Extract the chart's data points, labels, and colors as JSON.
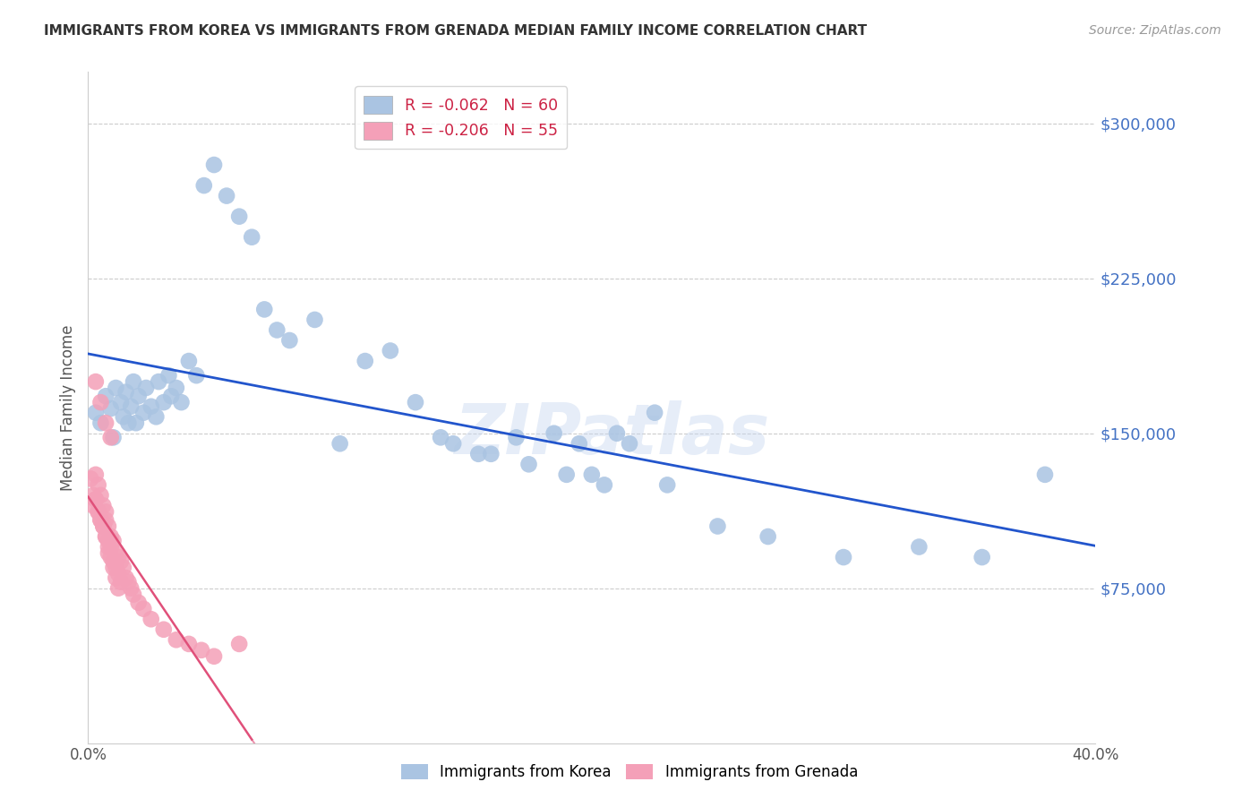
{
  "title": "IMMIGRANTS FROM KOREA VS IMMIGRANTS FROM GRENADA MEDIAN FAMILY INCOME CORRELATION CHART",
  "source": "Source: ZipAtlas.com",
  "ylabel": "Median Family Income",
  "xlim": [
    0,
    0.4
  ],
  "ylim": [
    0,
    325000
  ],
  "yticks": [
    0,
    75000,
    150000,
    225000,
    300000
  ],
  "xticks": [
    0.0,
    0.05,
    0.1,
    0.15,
    0.2,
    0.25,
    0.3,
    0.35,
    0.4
  ],
  "korea_color": "#aac4e2",
  "grenada_color": "#f4a0b8",
  "korea_line_color": "#2255cc",
  "grenada_line_color": "#e0507a",
  "watermark": "ZIPatlas",
  "korea_R": "-0.062",
  "korea_N": "60",
  "grenada_R": "-0.206",
  "grenada_N": "55",
  "korea_x": [
    0.003,
    0.005,
    0.007,
    0.009,
    0.01,
    0.011,
    0.013,
    0.014,
    0.015,
    0.016,
    0.017,
    0.018,
    0.019,
    0.02,
    0.022,
    0.023,
    0.025,
    0.027,
    0.028,
    0.03,
    0.032,
    0.033,
    0.035,
    0.037,
    0.04,
    0.043,
    0.046,
    0.05,
    0.055,
    0.06,
    0.065,
    0.07,
    0.075,
    0.08,
    0.09,
    0.1,
    0.11,
    0.12,
    0.13,
    0.14,
    0.155,
    0.17,
    0.185,
    0.2,
    0.215,
    0.23,
    0.25,
    0.27,
    0.3,
    0.33,
    0.355,
    0.38,
    0.195,
    0.21,
    0.225,
    0.145,
    0.16,
    0.175,
    0.19,
    0.205
  ],
  "korea_y": [
    160000,
    155000,
    168000,
    162000,
    148000,
    172000,
    165000,
    158000,
    170000,
    155000,
    163000,
    175000,
    155000,
    168000,
    160000,
    172000,
    163000,
    158000,
    175000,
    165000,
    178000,
    168000,
    172000,
    165000,
    185000,
    178000,
    270000,
    280000,
    265000,
    255000,
    245000,
    210000,
    200000,
    195000,
    205000,
    145000,
    185000,
    190000,
    165000,
    148000,
    140000,
    148000,
    150000,
    130000,
    145000,
    125000,
    105000,
    100000,
    90000,
    95000,
    90000,
    130000,
    145000,
    150000,
    160000,
    145000,
    140000,
    135000,
    130000,
    125000
  ],
  "grenada_x": [
    0.001,
    0.002,
    0.002,
    0.003,
    0.003,
    0.004,
    0.004,
    0.005,
    0.005,
    0.006,
    0.006,
    0.007,
    0.007,
    0.007,
    0.008,
    0.008,
    0.008,
    0.009,
    0.009,
    0.01,
    0.01,
    0.011,
    0.011,
    0.012,
    0.012,
    0.013,
    0.013,
    0.014,
    0.015,
    0.016,
    0.017,
    0.018,
    0.02,
    0.022,
    0.025,
    0.03,
    0.035,
    0.04,
    0.045,
    0.05,
    0.003,
    0.004,
    0.005,
    0.006,
    0.007,
    0.008,
    0.009,
    0.01,
    0.011,
    0.012,
    0.003,
    0.005,
    0.007,
    0.009,
    0.06
  ],
  "grenada_y": [
    128000,
    120000,
    115000,
    130000,
    118000,
    125000,
    112000,
    120000,
    108000,
    115000,
    105000,
    112000,
    100000,
    108000,
    105000,
    98000,
    92000,
    100000,
    95000,
    98000,
    88000,
    92000,
    85000,
    90000,
    82000,
    88000,
    78000,
    85000,
    80000,
    78000,
    75000,
    72000,
    68000,
    65000,
    60000,
    55000,
    50000,
    48000,
    45000,
    42000,
    118000,
    112000,
    108000,
    105000,
    100000,
    95000,
    90000,
    85000,
    80000,
    75000,
    175000,
    165000,
    155000,
    148000,
    48000
  ]
}
